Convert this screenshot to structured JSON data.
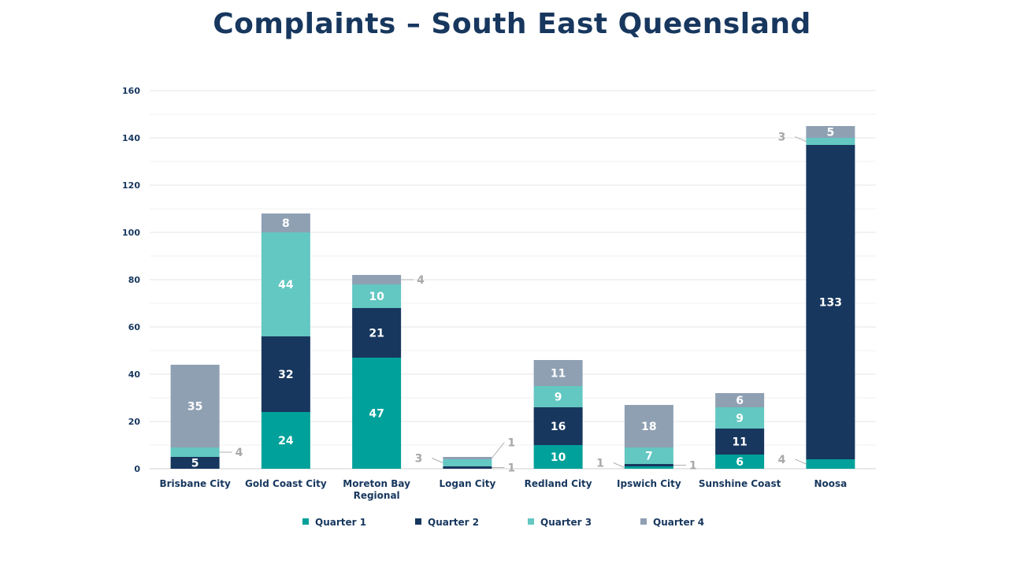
{
  "chart_data": {
    "type": "bar",
    "stacked": true,
    "title": "Complaints – South East Queensland",
    "xlabel": "",
    "ylabel": "",
    "ylim": [
      0,
      160
    ],
    "yticks": [
      0,
      20,
      40,
      60,
      80,
      100,
      120,
      140,
      160
    ],
    "grid": true,
    "legend_position": "bottom",
    "categories": [
      [
        "Brisbane City"
      ],
      [
        "Gold Coast City"
      ],
      [
        "Moreton Bay",
        "Regional"
      ],
      [
        "Logan City"
      ],
      [
        "Redland City"
      ],
      [
        "Ipswich City"
      ],
      [
        "Sunshine Coast"
      ],
      [
        "Noosa"
      ]
    ],
    "series": [
      {
        "name": "Quarter 1",
        "color": "#00a19a",
        "values": [
          0,
          24,
          47,
          0,
          10,
          1,
          6,
          4
        ]
      },
      {
        "name": "Quarter 2",
        "color": "#17375e",
        "values": [
          5,
          32,
          21,
          1,
          16,
          1,
          11,
          133
        ]
      },
      {
        "name": "Quarter 3",
        "color": "#63c7c2",
        "values": [
          4,
          44,
          10,
          3,
          9,
          7,
          9,
          3
        ]
      },
      {
        "name": "Quarter 4",
        "color": "#8fa0b3",
        "values": [
          35,
          8,
          4,
          1,
          11,
          18,
          6,
          5
        ]
      }
    ]
  }
}
